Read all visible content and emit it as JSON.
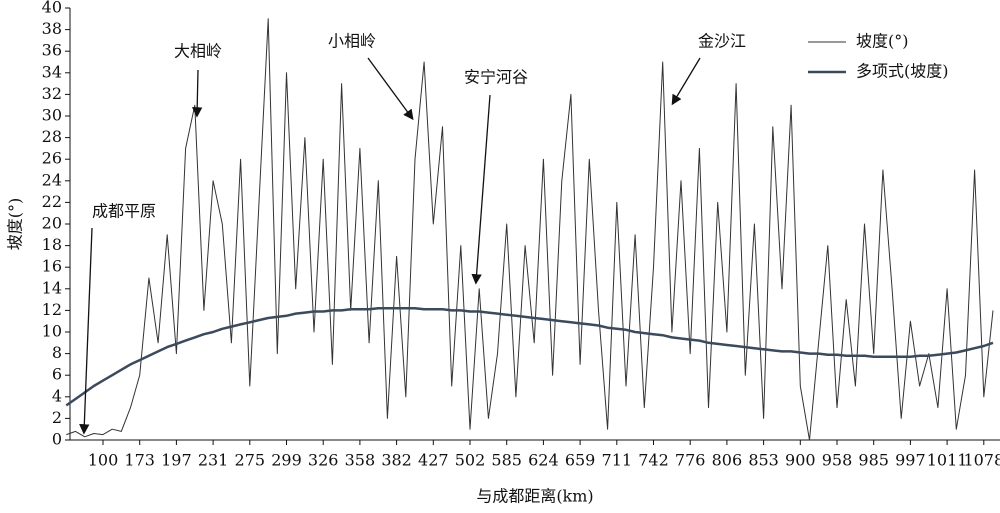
{
  "chart_data": {
    "type": "line",
    "y_label": "坡度(°)",
    "x_label": "与成都距离(km)",
    "categories": [
      null,
      null,
      null,
      null,
      "100",
      null,
      null,
      null,
      "173",
      null,
      null,
      null,
      "197",
      null,
      null,
      null,
      "231",
      null,
      null,
      null,
      "275",
      null,
      null,
      null,
      "299",
      null,
      null,
      null,
      "326",
      null,
      null,
      null,
      "358",
      null,
      null,
      null,
      "382",
      null,
      null,
      null,
      "427",
      null,
      null,
      null,
      "502",
      null,
      null,
      null,
      "585",
      null,
      null,
      null,
      "624",
      null,
      null,
      null,
      "659",
      null,
      null,
      null,
      "711",
      null,
      null,
      null,
      "742",
      null,
      null,
      null,
      "776",
      null,
      null,
      null,
      "806",
      null,
      null,
      null,
      "853",
      null,
      null,
      null,
      "900",
      null,
      null,
      null,
      "958",
      null,
      null,
      null,
      "985",
      null,
      null,
      null,
      "997",
      null,
      null,
      null,
      "1011",
      null,
      null,
      null,
      "1078",
      null
    ],
    "series": [
      {
        "name": "坡度(°)",
        "color": "#333333",
        "values": [
          0.5,
          0.8,
          0.3,
          0.6,
          0.5,
          1,
          0.8,
          3,
          6,
          15,
          9,
          19,
          8,
          27,
          31,
          12,
          24,
          20,
          9,
          26,
          5,
          22,
          39,
          8,
          34,
          14,
          28,
          10,
          26,
          7,
          33,
          12,
          27,
          9,
          24,
          2,
          17,
          4,
          26,
          35,
          20,
          29,
          5,
          18,
          1,
          14,
          2,
          8,
          20,
          4,
          18,
          9,
          26,
          6,
          24,
          32,
          7,
          26,
          12,
          1,
          22,
          5,
          19,
          3,
          16,
          35,
          10,
          24,
          8,
          27,
          3,
          22,
          10,
          33,
          6,
          20,
          2,
          29,
          14,
          31,
          5,
          0,
          9,
          18,
          3,
          13,
          5,
          20,
          8,
          25,
          14,
          2,
          11,
          5,
          8,
          3,
          14,
          1,
          6,
          25,
          4,
          12
        ]
      },
      {
        "name": "多项式(坡度)",
        "color": "#3b4a5c",
        "values": [
          3.2,
          3.8,
          4.4,
          5.0,
          5.5,
          6.0,
          6.5,
          7.0,
          7.4,
          7.8,
          8.2,
          8.6,
          8.9,
          9.2,
          9.5,
          9.8,
          10.0,
          10.3,
          10.5,
          10.7,
          10.9,
          11.1,
          11.3,
          11.4,
          11.5,
          11.7,
          11.8,
          11.9,
          11.9,
          12.0,
          12.0,
          12.1,
          12.1,
          12.1,
          12.2,
          12.2,
          12.2,
          12.2,
          12.2,
          12.1,
          12.1,
          12.1,
          12.0,
          12.0,
          11.9,
          11.9,
          11.8,
          11.7,
          11.6,
          11.5,
          11.4,
          11.3,
          11.2,
          11.1,
          11.0,
          10.9,
          10.8,
          10.7,
          10.6,
          10.4,
          10.3,
          10.2,
          10.0,
          9.9,
          9.8,
          9.7,
          9.5,
          9.4,
          9.3,
          9.2,
          9.0,
          8.9,
          8.8,
          8.7,
          8.6,
          8.5,
          8.4,
          8.3,
          8.2,
          8.2,
          8.1,
          8.0,
          8.0,
          7.9,
          7.9,
          7.8,
          7.8,
          7.8,
          7.7,
          7.7,
          7.7,
          7.7,
          7.7,
          7.8,
          7.8,
          7.9,
          8.0,
          8.1,
          8.3,
          8.5,
          8.7,
          9.0
        ]
      }
    ],
    "ylim": [
      0,
      40
    ],
    "yticks": [
      0,
      2,
      4,
      6,
      8,
      10,
      12,
      14,
      16,
      18,
      20,
      22,
      24,
      26,
      28,
      30,
      32,
      34,
      36,
      38,
      40
    ],
    "annotations": [
      "成都平原",
      "大相岭",
      "小相岭",
      "安宁河谷",
      "金沙江"
    ]
  }
}
